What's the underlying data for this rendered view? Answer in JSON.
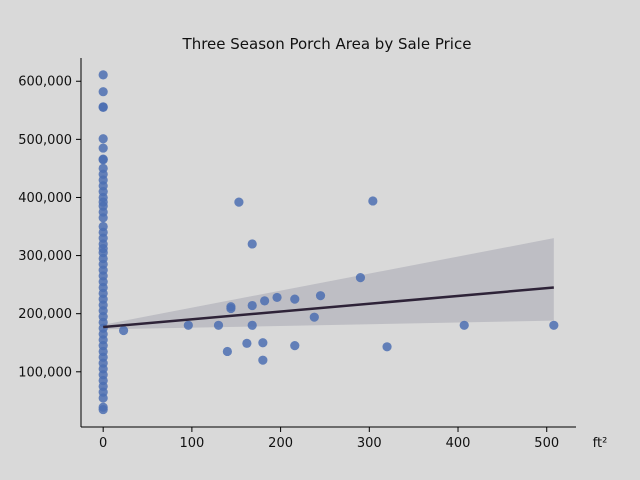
{
  "chart_data": {
    "type": "scatter",
    "title": "Three Season Porch Area by Sale Price",
    "xlabel": "",
    "ylabel": "",
    "x_unit": "ft²",
    "xlim": [
      -25,
      533
    ],
    "ylim": [
      5000,
      640000
    ],
    "x_ticks": [
      0,
      100,
      200,
      300,
      400,
      500
    ],
    "x_tick_labels": [
      "0",
      "100",
      "200",
      "300",
      "400",
      "500"
    ],
    "y_ticks": [
      100000,
      200000,
      300000,
      400000,
      500000,
      600000
    ],
    "y_tick_labels": [
      "100,000",
      "200,000",
      "300,000",
      "400,000",
      "500,000",
      "600,000"
    ],
    "grid": false,
    "point_color": "#4c6eb1",
    "line_color": "#2e2338",
    "band_color": "#b9b8c0",
    "points": [
      {
        "x": 0,
        "y": 611000
      },
      {
        "x": 0,
        "y": 582000
      },
      {
        "x": 0,
        "y": 556000
      },
      {
        "x": 0,
        "y": 555000
      },
      {
        "x": 0,
        "y": 501000
      },
      {
        "x": 0,
        "y": 485000
      },
      {
        "x": 0,
        "y": 466000
      },
      {
        "x": 0,
        "y": 465000
      },
      {
        "x": 0,
        "y": 450000
      },
      {
        "x": 0,
        "y": 440000
      },
      {
        "x": 0,
        "y": 430000
      },
      {
        "x": 0,
        "y": 420000
      },
      {
        "x": 0,
        "y": 410000
      },
      {
        "x": 0,
        "y": 400000
      },
      {
        "x": 0,
        "y": 392000
      },
      {
        "x": 0,
        "y": 385000
      },
      {
        "x": 0,
        "y": 375000
      },
      {
        "x": 0,
        "y": 365000
      },
      {
        "x": 0,
        "y": 350000
      },
      {
        "x": 0,
        "y": 340000
      },
      {
        "x": 0,
        "y": 330000
      },
      {
        "x": 0,
        "y": 320000
      },
      {
        "x": 0,
        "y": 312000
      },
      {
        "x": 0,
        "y": 305000
      },
      {
        "x": 0,
        "y": 295000
      },
      {
        "x": 0,
        "y": 285000
      },
      {
        "x": 0,
        "y": 275000
      },
      {
        "x": 0,
        "y": 265000
      },
      {
        "x": 0,
        "y": 255000
      },
      {
        "x": 0,
        "y": 245000
      },
      {
        "x": 0,
        "y": 235000
      },
      {
        "x": 0,
        "y": 225000
      },
      {
        "x": 0,
        "y": 215000
      },
      {
        "x": 0,
        "y": 205000
      },
      {
        "x": 0,
        "y": 195000
      },
      {
        "x": 0,
        "y": 185000
      },
      {
        "x": 0,
        "y": 175000
      },
      {
        "x": 0,
        "y": 165000
      },
      {
        "x": 0,
        "y": 155000
      },
      {
        "x": 0,
        "y": 145000
      },
      {
        "x": 0,
        "y": 135000
      },
      {
        "x": 0,
        "y": 125000
      },
      {
        "x": 0,
        "y": 115000
      },
      {
        "x": 0,
        "y": 105000
      },
      {
        "x": 0,
        "y": 95000
      },
      {
        "x": 0,
        "y": 85000
      },
      {
        "x": 0,
        "y": 75000
      },
      {
        "x": 0,
        "y": 65000
      },
      {
        "x": 0,
        "y": 55000
      },
      {
        "x": 0,
        "y": 39000
      },
      {
        "x": 0,
        "y": 35000
      },
      {
        "x": 23,
        "y": 171000
      },
      {
        "x": 96,
        "y": 180000
      },
      {
        "x": 130,
        "y": 180000
      },
      {
        "x": 140,
        "y": 135000
      },
      {
        "x": 144,
        "y": 212000
      },
      {
        "x": 144,
        "y": 209000
      },
      {
        "x": 153,
        "y": 392000
      },
      {
        "x": 162,
        "y": 149000
      },
      {
        "x": 168,
        "y": 320000
      },
      {
        "x": 168,
        "y": 214000
      },
      {
        "x": 168,
        "y": 180000
      },
      {
        "x": 180,
        "y": 150000
      },
      {
        "x": 180,
        "y": 120000
      },
      {
        "x": 182,
        "y": 222000
      },
      {
        "x": 196,
        "y": 228000
      },
      {
        "x": 216,
        "y": 225000
      },
      {
        "x": 216,
        "y": 145000
      },
      {
        "x": 238,
        "y": 194000
      },
      {
        "x": 245,
        "y": 231000
      },
      {
        "x": 290,
        "y": 262000
      },
      {
        "x": 304,
        "y": 394000
      },
      {
        "x": 320,
        "y": 143000
      },
      {
        "x": 407,
        "y": 180000
      },
      {
        "x": 508,
        "y": 180000
      }
    ],
    "regression": {
      "x": [
        0,
        508
      ],
      "y": [
        177000,
        245000
      ],
      "ci_lower": [
        173000,
        188000
      ],
      "ci_upper": [
        181000,
        330000
      ]
    }
  }
}
